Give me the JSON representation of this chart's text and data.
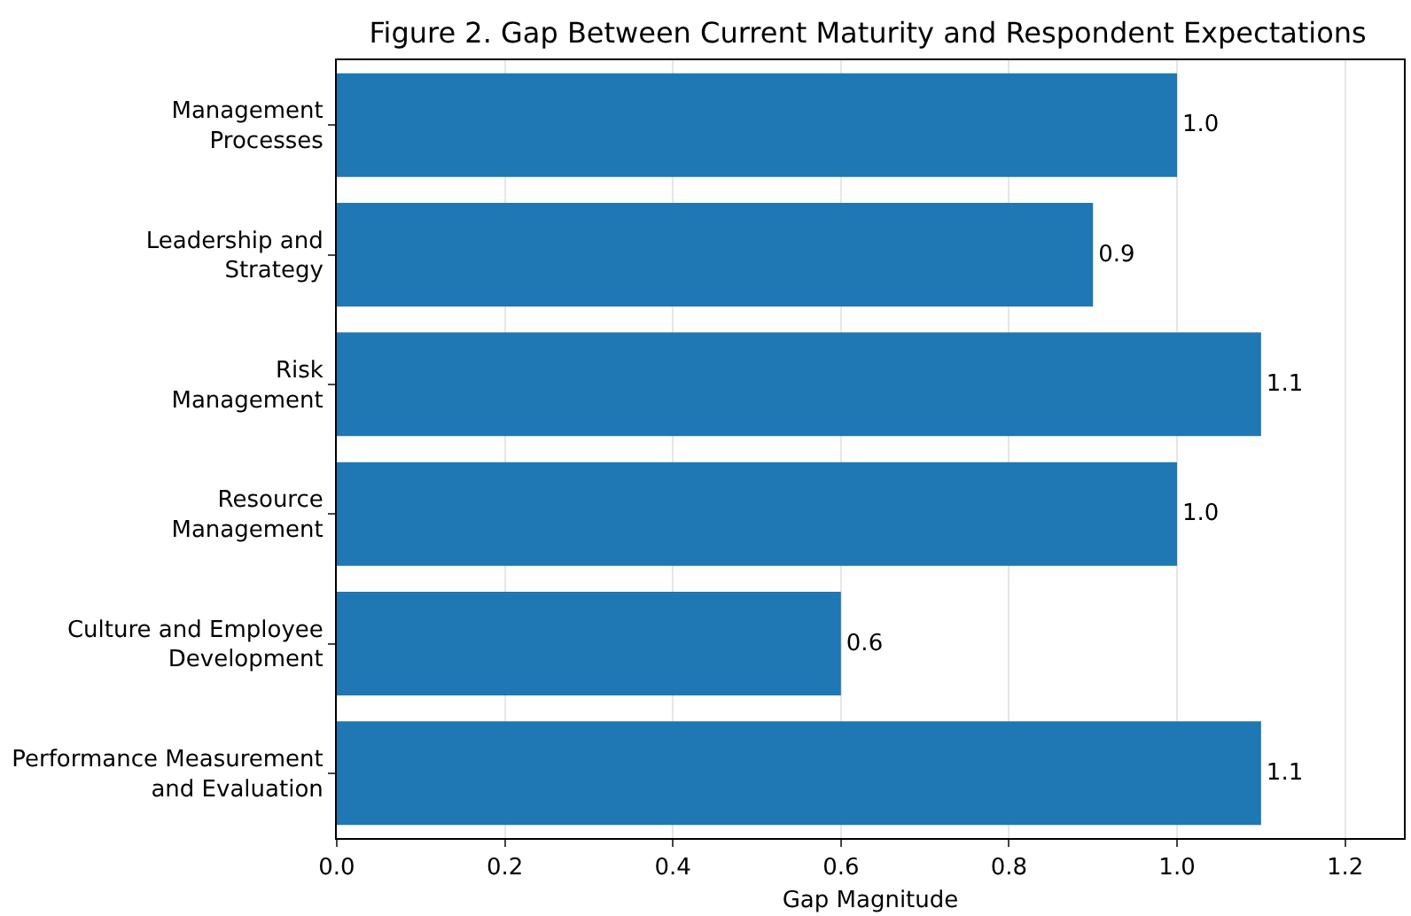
{
  "chart_data": {
    "type": "bar",
    "orientation": "horizontal",
    "title": "Figure 2. Gap Between Current Maturity and Respondent Expectations",
    "xlabel": "Gap Magnitude",
    "categories": [
      "Management Processes",
      "Leadership and Strategy",
      "Risk Management",
      "Resource Management",
      "Culture and Employee Development",
      "Performance Measurement and Evaluation"
    ],
    "values": [
      1.0,
      0.9,
      1.1,
      1.0,
      0.6,
      1.1
    ],
    "value_labels": [
      "1.0",
      "0.9",
      "1.1",
      "1.0",
      "0.6",
      "1.1"
    ],
    "color": "#1f77b4",
    "xlim": [
      0,
      1.27
    ],
    "xticks": [
      {
        "value": 0,
        "label": "0.0"
      },
      {
        "value": 0.2,
        "label": "0.2"
      },
      {
        "value": 0.4,
        "label": "0.4"
      },
      {
        "value": 0.6,
        "label": "0.6"
      },
      {
        "value": 0.8,
        "label": "0.8"
      },
      {
        "value": 1.0,
        "label": "1.0"
      },
      {
        "value": 1.2,
        "label": "1.2"
      }
    ],
    "grid": "x",
    "legend": false
  }
}
